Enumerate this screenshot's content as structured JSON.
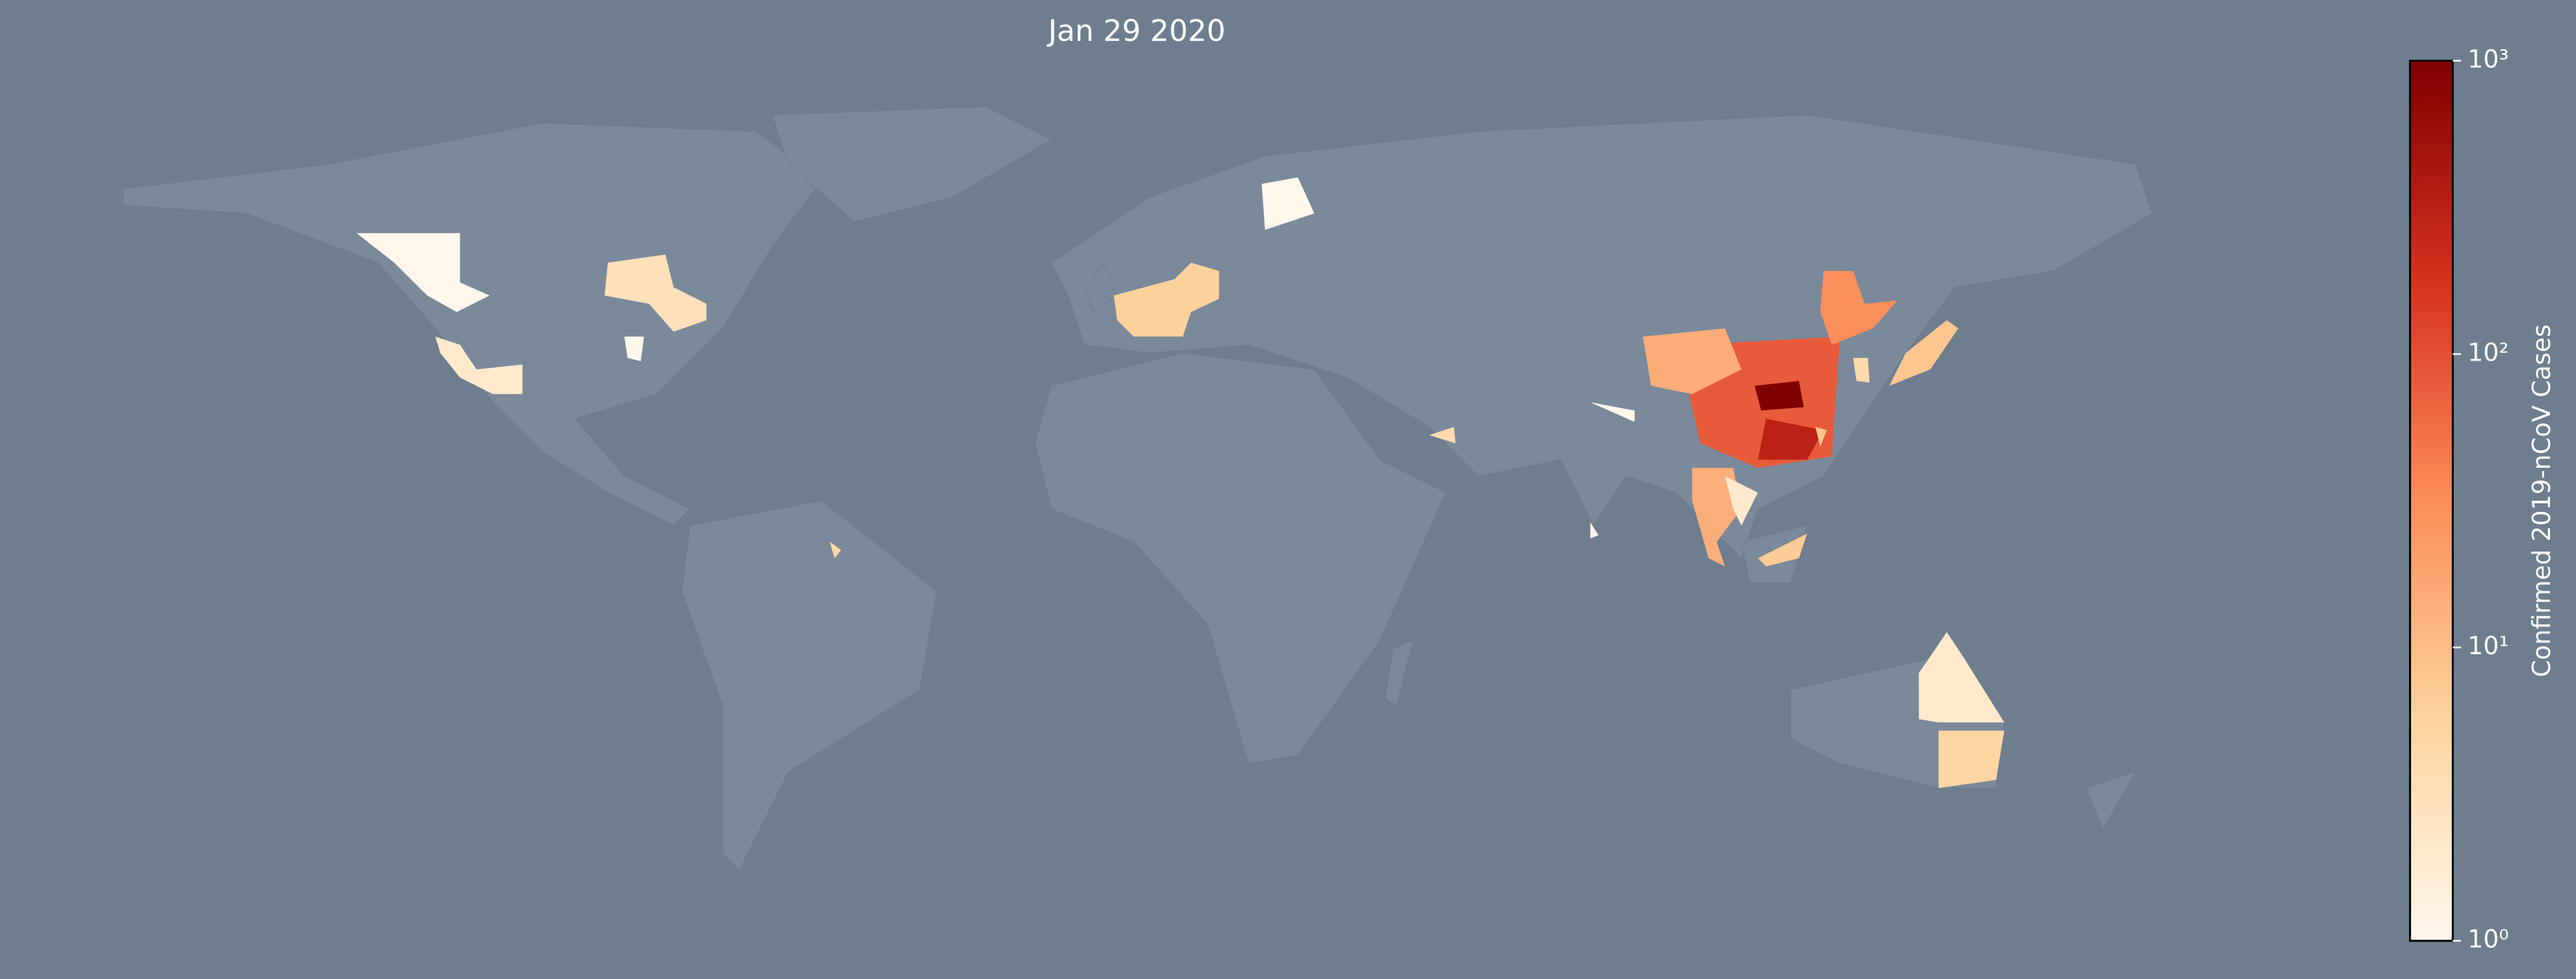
{
  "chart_data": {
    "type": "choropleth",
    "title": "Jan 29 2020",
    "values": [
      80,
      15,
      30,
      1000,
      300,
      4,
      8,
      14,
      2,
      7,
      2,
      5,
      1,
      2,
      3,
      1,
      6,
      1,
      4,
      1,
      1,
      8,
      5
    ],
    "colorbar_label": "Confirmed 2019-nCoV Cases",
    "color_scale": "log",
    "clim": [
      1,
      1000
    ],
    "cticks": [
      {
        "value": 1,
        "label": "10⁰"
      },
      {
        "value": 10,
        "label": "10¹"
      },
      {
        "value": 100,
        "label": "10²"
      },
      {
        "value": 1000,
        "label": "10³"
      }
    ],
    "colormap": [
      "#fff7ec",
      "#fdd49e",
      "#fc8d59",
      "#d7301f",
      "#7f0000"
    ]
  }
}
